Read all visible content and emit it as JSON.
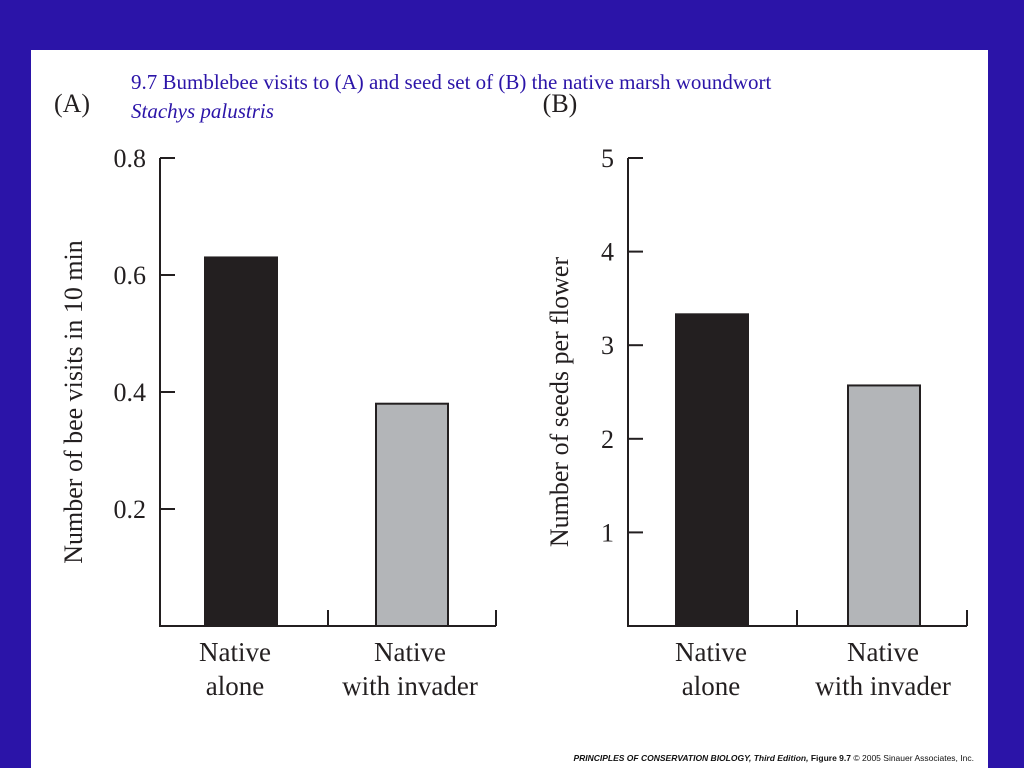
{
  "slide": {
    "title": "9.7  Bumblebee visits to (A) and seed set of (B) the native marsh woundwort",
    "species": "Stachys palustris",
    "credit_book": "PRINCIPLES OF CONSERVATION BIOLOGY, Third Edition,",
    "credit_figure": "Figure 9.7",
    "credit_copyright": "© 2005 Sinauer Associates, Inc."
  },
  "colors": {
    "frame": "#2b14a8",
    "title": "#2b14a8",
    "bar_native_alone": "#231f20",
    "bar_native_with_invader": "#b3b5b8"
  },
  "chart_data": [
    {
      "type": "bar",
      "panel_label": "(A)",
      "categories": [
        [
          "Native",
          "alone"
        ],
        [
          "Native",
          "with invader"
        ]
      ],
      "values": [
        0.63,
        0.38
      ],
      "ylabel": "Number of bee visits in 10 min",
      "xlabel": "",
      "ylim": [
        0.0,
        0.8
      ],
      "yticks": [
        0.2,
        0.4,
        0.6,
        0.8
      ],
      "ytick_labels": [
        "0.2",
        "0.4",
        "0.6",
        "0.8"
      ],
      "grid": false,
      "legend": "none"
    },
    {
      "type": "bar",
      "panel_label": "(B)",
      "categories": [
        [
          "Native",
          "alone"
        ],
        [
          "Native",
          "with invader"
        ]
      ],
      "values": [
        3.33,
        2.57
      ],
      "ylabel": "Number of seeds per flower",
      "xlabel": "",
      "ylim": [
        0,
        5
      ],
      "yticks": [
        1,
        2,
        3,
        4,
        5
      ],
      "ytick_labels": [
        "1",
        "2",
        "3",
        "4",
        "5"
      ],
      "grid": false,
      "legend": "none"
    }
  ]
}
